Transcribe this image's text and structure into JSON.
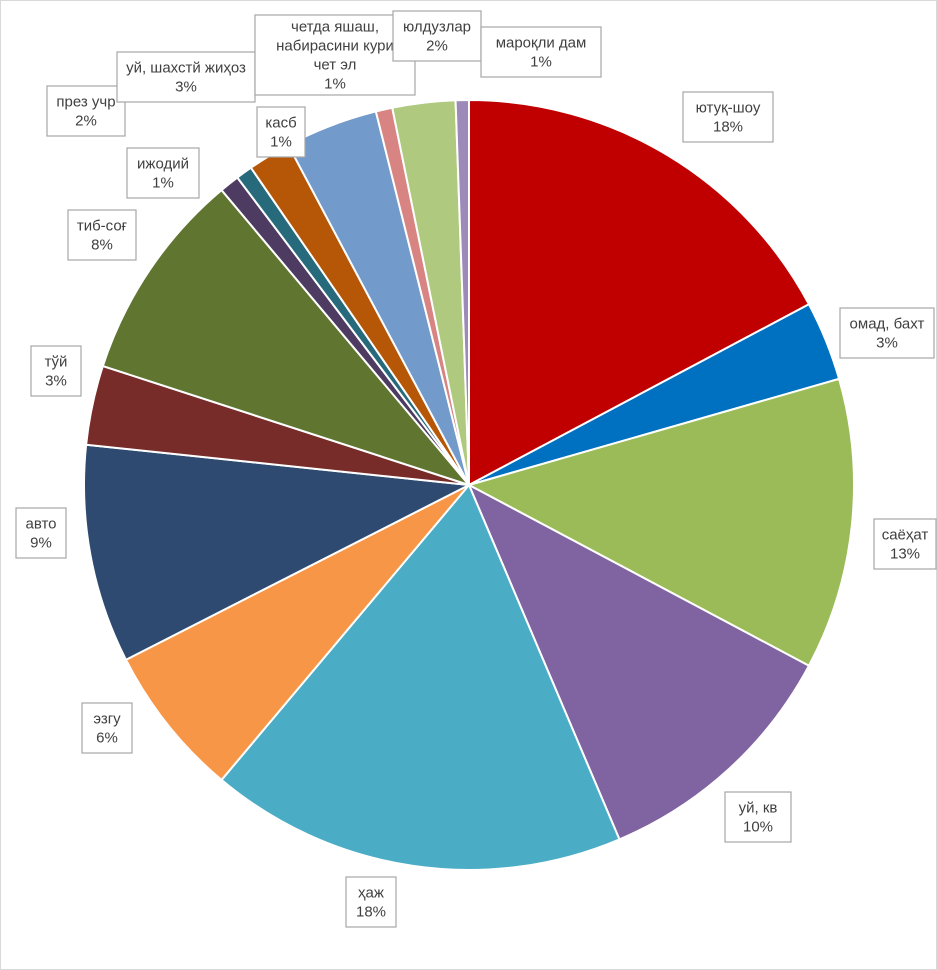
{
  "chart_data": {
    "type": "pie",
    "title": "",
    "slices": [
      {
        "name": "ютуқ-шоу",
        "value": 18,
        "label": "18%",
        "color": "#C00000"
      },
      {
        "name": "омад, бахт",
        "value": 3,
        "label": "3%",
        "color": "#0070C0"
      },
      {
        "name": "саёҳат",
        "value": 13,
        "label": "13%",
        "color": "#9BBB59"
      },
      {
        "name": "уй, кв",
        "value": 10,
        "label": "10%",
        "color": "#8064A2"
      },
      {
        "name": "ҳаж",
        "value": 18,
        "label": "18%",
        "color": "#4BACC6"
      },
      {
        "name": "эзгу",
        "value": 6,
        "label": "6%",
        "color": "#F79646"
      },
      {
        "name": "авто",
        "value": 9,
        "label": "9%",
        "color": "#2E4A70"
      },
      {
        "name": "тўй",
        "value": 3,
        "label": "3%",
        "color": "#772C2A"
      },
      {
        "name": "тиб-соғ",
        "value": 8,
        "label": "8%",
        "color": "#5F7530"
      },
      {
        "name": "ижодий",
        "value": 1,
        "label": "1%",
        "color": "#4D3B62"
      },
      {
        "name": "през учр",
        "value": 2,
        "label": "2%",
        "color": "#276A7C"
      },
      {
        "name": "касб",
        "value": 1,
        "label": "1%",
        "color": "#B65708"
      },
      {
        "name": "уй, шахстй жиҳоз",
        "value": 3,
        "label": "3%",
        "color": "#729ACA"
      },
      {
        "name": "четда яшаш, набирасини кури чет эл",
        "value": 1,
        "label": "1%",
        "color": "#D78482"
      },
      {
        "name": "юлдузлар",
        "value": 2,
        "label": "2%",
        "color": "#AFCA7E"
      },
      {
        "name": "мароқли дам",
        "value": 1,
        "label": "1%",
        "color": "#9E8AB8"
      }
    ]
  }
}
